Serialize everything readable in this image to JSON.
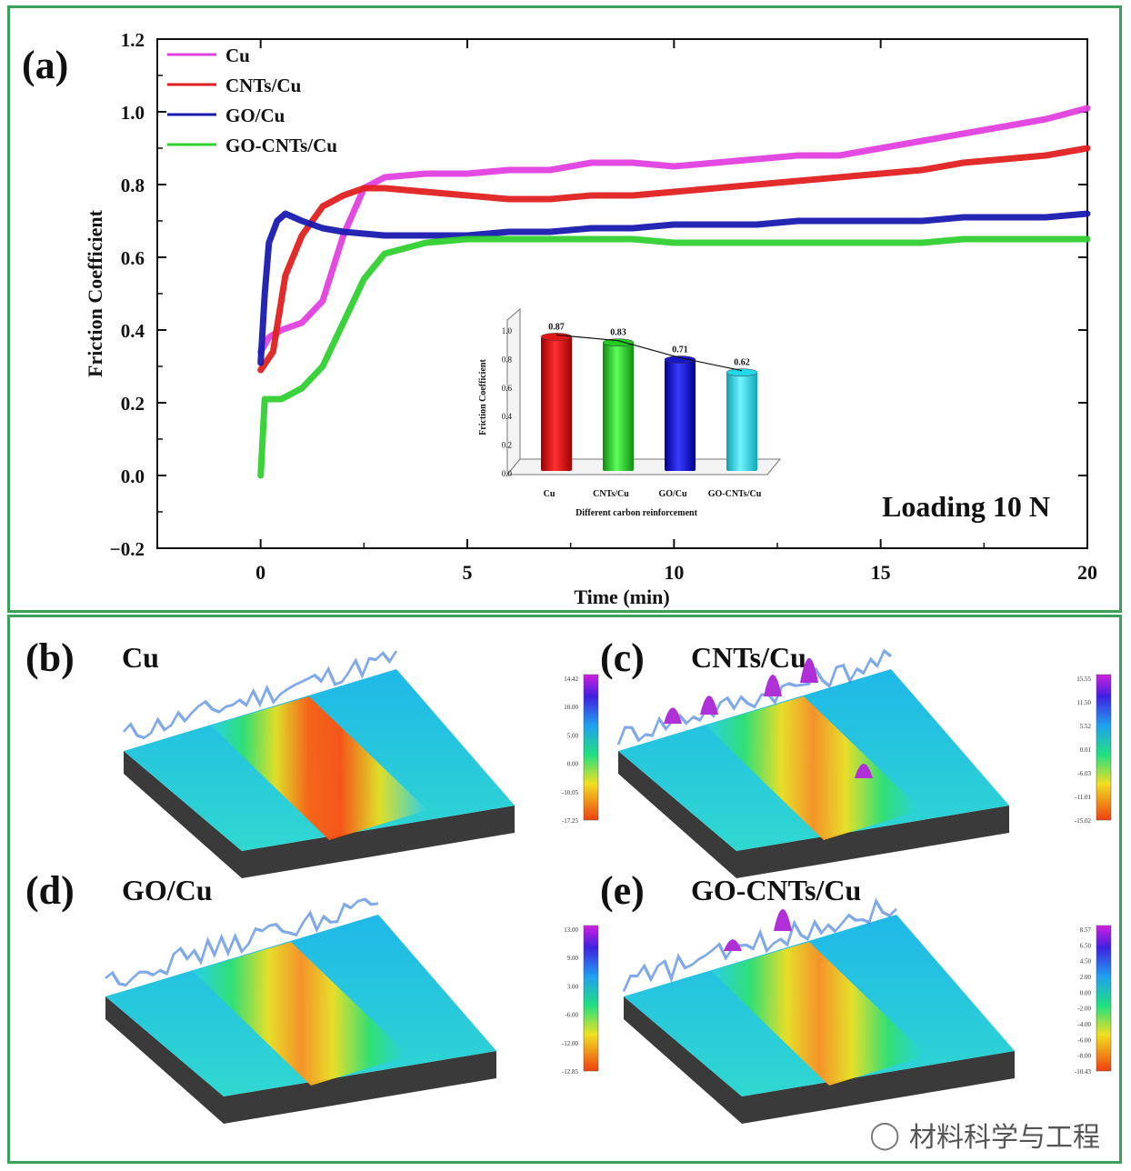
{
  "chart_data": [
    {
      "type": "line",
      "panel_label": "(a)",
      "xlabel": "Time (min)",
      "ylabel": "Friction Coefficient",
      "xlim": [
        -2.5,
        20
      ],
      "ylim": [
        -0.2,
        1.2
      ],
      "x_ticks": [
        "0",
        "5",
        "10",
        "15",
        "20"
      ],
      "y_ticks": [
        "−0.2",
        "0.0",
        "0.2",
        "0.4",
        "0.6",
        "0.8",
        "1.0",
        "1.2"
      ],
      "annotation": "Loading 10 N",
      "legend_position": "top-left",
      "series": [
        {
          "name": "Cu",
          "color": "#e040e0",
          "x": [
            0,
            0.2,
            0.5,
            1,
            1.5,
            2,
            2.5,
            3,
            4,
            5,
            6,
            7,
            8,
            9,
            10,
            11,
            12,
            13,
            14,
            15,
            16,
            17,
            18,
            19,
            20
          ],
          "y": [
            0.34,
            0.38,
            0.4,
            0.42,
            0.48,
            0.66,
            0.79,
            0.82,
            0.83,
            0.83,
            0.84,
            0.84,
            0.86,
            0.86,
            0.85,
            0.86,
            0.87,
            0.88,
            0.88,
            0.9,
            0.92,
            0.94,
            0.96,
            0.98,
            1.01
          ]
        },
        {
          "name": "CNTs/Cu",
          "color": "#e02020",
          "x": [
            0,
            0.3,
            0.6,
            1,
            1.5,
            2,
            2.5,
            3,
            4,
            5,
            6,
            7,
            8,
            9,
            10,
            11,
            12,
            13,
            14,
            15,
            16,
            17,
            18,
            19,
            20
          ],
          "y": [
            0.29,
            0.34,
            0.55,
            0.66,
            0.74,
            0.77,
            0.79,
            0.79,
            0.78,
            0.77,
            0.76,
            0.76,
            0.77,
            0.77,
            0.78,
            0.79,
            0.8,
            0.81,
            0.82,
            0.83,
            0.84,
            0.86,
            0.87,
            0.88,
            0.9
          ]
        },
        {
          "name": "GO/Cu",
          "color": "#1a1ab0",
          "x": [
            0,
            0.1,
            0.2,
            0.4,
            0.6,
            1,
            1.5,
            2,
            3,
            4,
            5,
            6,
            7,
            8,
            9,
            10,
            11,
            12,
            13,
            14,
            15,
            16,
            17,
            18,
            19,
            20
          ],
          "y": [
            0.31,
            0.5,
            0.64,
            0.7,
            0.72,
            0.7,
            0.68,
            0.67,
            0.66,
            0.66,
            0.66,
            0.67,
            0.67,
            0.68,
            0.68,
            0.69,
            0.69,
            0.69,
            0.7,
            0.7,
            0.7,
            0.7,
            0.71,
            0.71,
            0.71,
            0.72
          ]
        },
        {
          "name": "GO-CNTs/Cu",
          "color": "#30d030",
          "x": [
            0,
            0.1,
            0.5,
            1,
            1.5,
            2,
            2.5,
            3,
            4,
            5,
            6,
            7,
            8,
            9,
            10,
            11,
            12,
            13,
            14,
            15,
            16,
            17,
            18,
            19,
            20
          ],
          "y": [
            0.0,
            0.21,
            0.21,
            0.24,
            0.3,
            0.42,
            0.54,
            0.61,
            0.64,
            0.65,
            0.65,
            0.65,
            0.65,
            0.65,
            0.64,
            0.64,
            0.64,
            0.64,
            0.64,
            0.64,
            0.64,
            0.65,
            0.65,
            0.65,
            0.65
          ]
        }
      ]
    },
    {
      "type": "bar",
      "panel_label": "(a) inset",
      "xlabel": "Different carbon reinforcement",
      "ylabel": "Friction Coefficient",
      "ylim": [
        0.0,
        1.0
      ],
      "y_ticks": [
        "0.0",
        "0.2",
        "0.4",
        "0.6",
        "0.8",
        "1.0"
      ],
      "categories": [
        "Cu",
        "CNTs/Cu",
        "GO/Cu",
        "GO-CNTs/Cu"
      ],
      "values": [
        0.87,
        0.83,
        0.71,
        0.62
      ],
      "value_labels": [
        "0.87",
        "0.83",
        "0.71",
        "0.62"
      ],
      "colors": [
        "#e01818",
        "#22cc22",
        "#1818c8",
        "#22d8e8"
      ]
    }
  ],
  "surface_panels": [
    {
      "label": "(b)",
      "title": "Cu",
      "scale": [
        "14.42",
        "10.00",
        "5.00",
        "0.00",
        "-10.05",
        "-17.25"
      ]
    },
    {
      "label": "(c)",
      "title": "CNTs/Cu",
      "scale": [
        "15.55",
        "11.50",
        "5.52",
        "0.01",
        "-6.03",
        "-11.01",
        "-15.02"
      ]
    },
    {
      "label": "(d)",
      "title": "GO/Cu",
      "scale": [
        "13.00",
        "9.00",
        "3.00",
        "-6.00",
        "-12.00",
        "-12.85"
      ]
    },
    {
      "label": "(e)",
      "title": "GO-CNTs/Cu",
      "scale": [
        "8.57",
        "6.50",
        "4.50",
        "2.00",
        "0.00",
        "-2.00",
        "-4.00",
        "-6.00",
        "-8.00",
        "-10.43"
      ]
    }
  ],
  "watermark": {
    "text": "材料科学与工程"
  }
}
